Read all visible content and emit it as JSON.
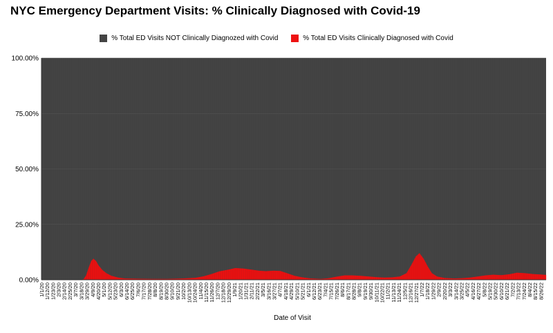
{
  "chart_data": {
    "type": "bar",
    "stacked": true,
    "title": "NYC Emergency Department Visits: % Clinically Diagnosed with Covid-19",
    "xlabel": "Date of Visit",
    "ylabel": "",
    "ylim": [
      0,
      100
    ],
    "y_ticks": [
      "0.00%",
      "25.00%",
      "50.00%",
      "75.00%",
      "100.00%"
    ],
    "legend_position": "top",
    "colors": {
      "not_covid": "#444444",
      "covid": "#ee1111"
    },
    "legend": [
      {
        "name": "% Total ED Visits NOT Clinically Diagnozed with Covid",
        "color": "#444444"
      },
      {
        "name": "% Total ED Visits Clinically Diagnosed with Covid",
        "color": "#ee1111"
      }
    ],
    "x_start": "2020-01-01",
    "x_end": "2022-09-04",
    "x_tick_labels": [
      "1/1/20",
      "1/12/20",
      "1/23/20",
      "2/3/20",
      "2/14/20",
      "2/25/20",
      "3/7/20",
      "3/18/20",
      "3/29/20",
      "4/9/20",
      "4/20/20",
      "5/1/20",
      "5/12/20",
      "5/23/20",
      "6/3/20",
      "6/14/20",
      "6/25/20",
      "7/6/20",
      "7/17/20",
      "7/28/20",
      "8/8/20",
      "8/19/20",
      "8/30/20",
      "9/10/20",
      "9/21/20",
      "10/2/20",
      "10/13/20",
      "10/24/20",
      "11/4/20",
      "11/15/20",
      "11/26/20",
      "12/7/20",
      "12/18/20",
      "12/29/20",
      "1/9/21",
      "1/20/21",
      "1/31/21",
      "2/11/21",
      "2/22/21",
      "3/5/21",
      "3/16/21",
      "3/27/21",
      "4/7/21",
      "4/18/21",
      "4/29/21",
      "5/10/21",
      "5/21/21",
      "6/1/21",
      "6/12/21",
      "6/23/21",
      "7/4/21",
      "7/15/21",
      "7/26/21",
      "8/6/21",
      "8/17/21",
      "8/28/21",
      "9/8/21",
      "9/19/21",
      "9/30/21",
      "10/11/21",
      "10/22/21",
      "11/2/21",
      "11/13/21",
      "11/24/21",
      "12/5/21",
      "12/16/21",
      "12/27/21",
      "1/7/22",
      "1/18/22",
      "1/29/22",
      "2/9/22",
      "2/20/22",
      "3/3/22",
      "3/14/22",
      "3/25/22",
      "4/5/22",
      "4/16/22",
      "4/27/22",
      "5/8/22",
      "5/19/22",
      "5/30/22",
      "6/10/22",
      "6/21/22",
      "7/2/22",
      "7/13/22",
      "7/24/22",
      "8/4/22",
      "8/15/22",
      "8/26/22"
    ],
    "series": [
      {
        "name": "% Total ED Visits Clinically Diagnosed with Covid",
        "points": [
          [
            "2020-01-01",
            0
          ],
          [
            "2020-03-15",
            0
          ],
          [
            "2020-03-22",
            0.3
          ],
          [
            "2020-03-27",
            2
          ],
          [
            "2020-04-01",
            5.5
          ],
          [
            "2020-04-06",
            8.5
          ],
          [
            "2020-04-10",
            9.5
          ],
          [
            "2020-04-15",
            8.5
          ],
          [
            "2020-04-20",
            6.5
          ],
          [
            "2020-04-27",
            4.5
          ],
          [
            "2020-05-05",
            3
          ],
          [
            "2020-05-15",
            1.8
          ],
          [
            "2020-05-28",
            1
          ],
          [
            "2020-06-10",
            0.6
          ],
          [
            "2020-07-01",
            0.5
          ],
          [
            "2020-08-01",
            0.4
          ],
          [
            "2020-09-01",
            0.4
          ],
          [
            "2020-10-01",
            0.6
          ],
          [
            "2020-10-25",
            0.9
          ],
          [
            "2020-11-10",
            1.6
          ],
          [
            "2020-11-25",
            2.6
          ],
          [
            "2020-12-10",
            3.8
          ],
          [
            "2020-12-28",
            4.6
          ],
          [
            "2021-01-10",
            5.3
          ],
          [
            "2021-01-25",
            5.1
          ],
          [
            "2021-02-10",
            4.6
          ],
          [
            "2021-02-25",
            4.1
          ],
          [
            "2021-03-10",
            3.9
          ],
          [
            "2021-03-25",
            4.1
          ],
          [
            "2021-04-07",
            4.0
          ],
          [
            "2021-04-20",
            3.0
          ],
          [
            "2021-05-05",
            1.8
          ],
          [
            "2021-05-20",
            1.1
          ],
          [
            "2021-06-05",
            0.6
          ],
          [
            "2021-06-25",
            0.4
          ],
          [
            "2021-07-10",
            0.7
          ],
          [
            "2021-07-25",
            1.4
          ],
          [
            "2021-08-10",
            2.0
          ],
          [
            "2021-08-25",
            2.0
          ],
          [
            "2021-09-10",
            1.8
          ],
          [
            "2021-09-25",
            1.5
          ],
          [
            "2021-10-10",
            1.2
          ],
          [
            "2021-10-25",
            1.0
          ],
          [
            "2021-11-10",
            1.1
          ],
          [
            "2021-11-25",
            1.5
          ],
          [
            "2021-12-08",
            3.0
          ],
          [
            "2021-12-18",
            7.0
          ],
          [
            "2021-12-26",
            10.5
          ],
          [
            "2022-01-02",
            12.0
          ],
          [
            "2022-01-10",
            9.5
          ],
          [
            "2022-01-18",
            6.0
          ],
          [
            "2022-01-26",
            3.0
          ],
          [
            "2022-02-05",
            1.5
          ],
          [
            "2022-02-20",
            0.8
          ],
          [
            "2022-03-10",
            0.6
          ],
          [
            "2022-03-25",
            0.7
          ],
          [
            "2022-04-10",
            1.0
          ],
          [
            "2022-04-25",
            1.5
          ],
          [
            "2022-05-10",
            2.0
          ],
          [
            "2022-05-25",
            2.3
          ],
          [
            "2022-06-10",
            2.1
          ],
          [
            "2022-06-25",
            2.5
          ],
          [
            "2022-07-10",
            3.2
          ],
          [
            "2022-07-25",
            3.0
          ],
          [
            "2022-08-10",
            2.6
          ],
          [
            "2022-08-25",
            2.4
          ],
          [
            "2022-09-04",
            2.2
          ]
        ]
      },
      {
        "name": "% Total ED Visits NOT Clinically Diagnozed with Covid",
        "note_values": "100 minus the Covid share for each day"
      }
    ]
  }
}
